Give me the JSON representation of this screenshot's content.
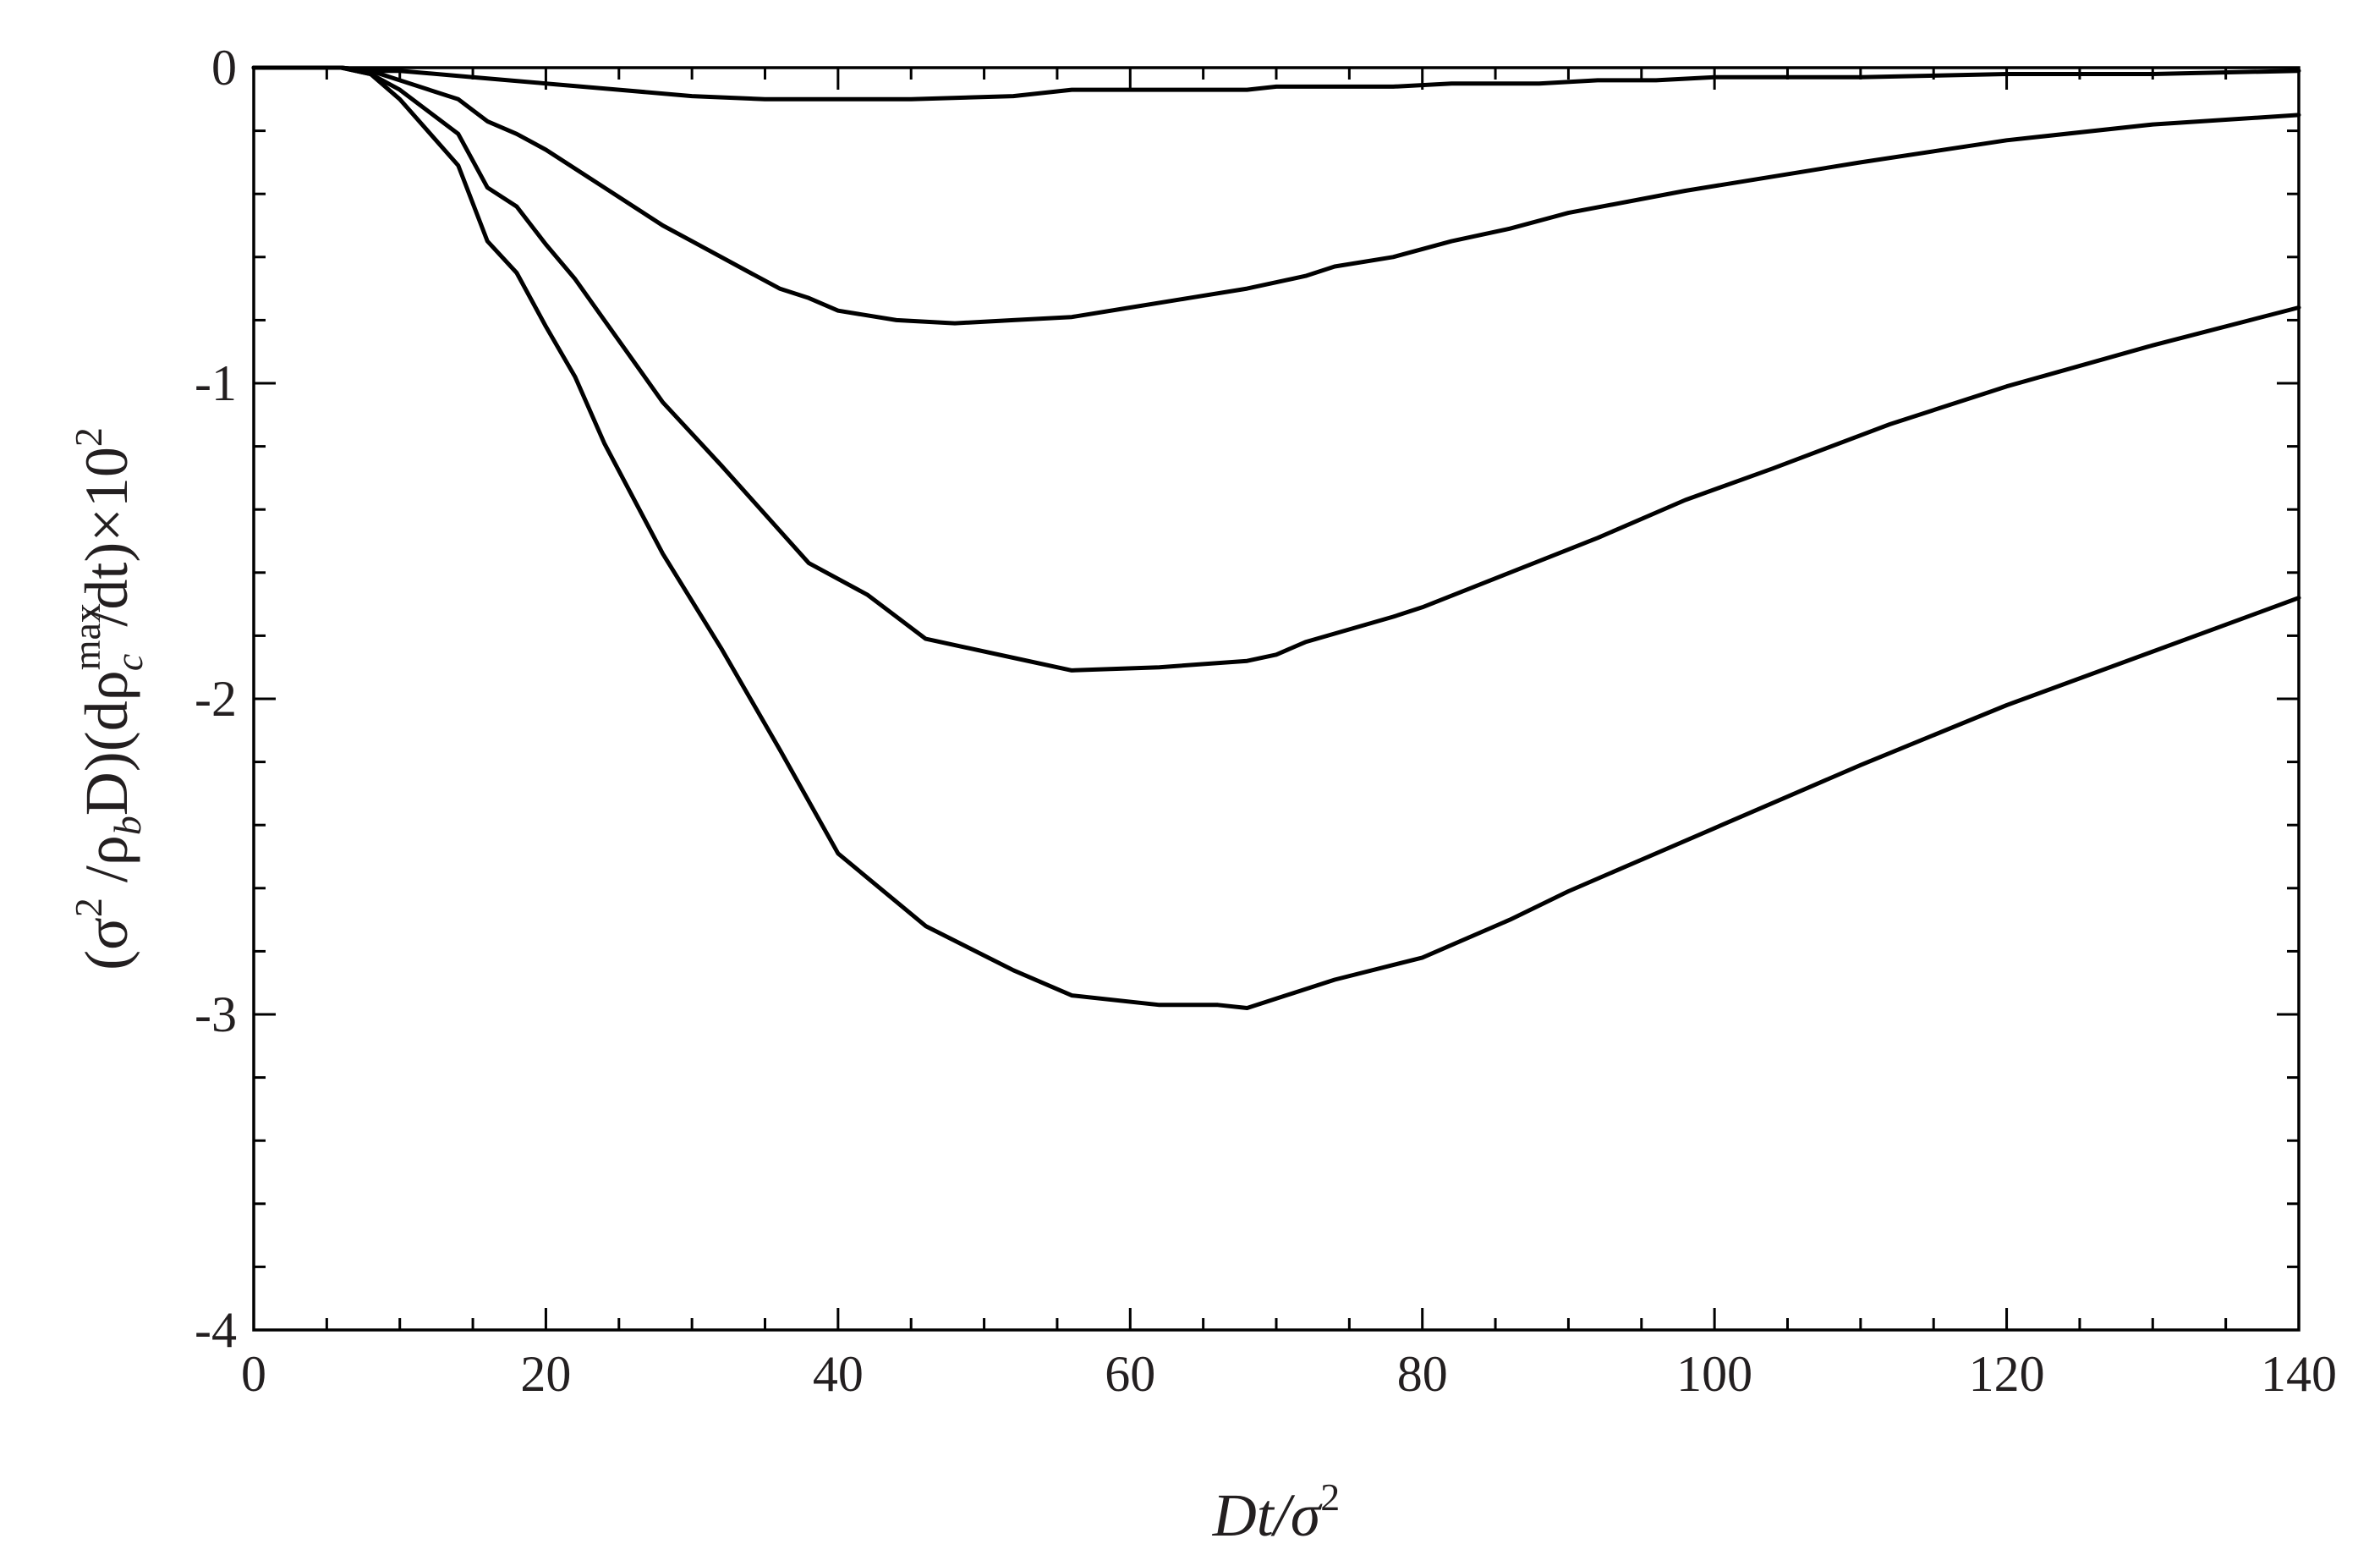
{
  "chart_data": {
    "type": "line",
    "title": "",
    "xlabel": "Dt/σ²",
    "ylabel": "(σ² /ρb D)(dρc max/dt)×10²",
    "xlabel_parts": {
      "base": "Dt/σ",
      "sup": "2"
    },
    "ylabel_parts": {
      "open": "(σ",
      "sup1": "2",
      "mid1": " /ρ",
      "sub1": "b",
      "mid2": "D)(dρ",
      "sup2": "max",
      "sub2": "c",
      "mid3": "/dt)×10",
      "sup3": "2"
    },
    "xlim": [
      0,
      140
    ],
    "ylim": [
      -4,
      0
    ],
    "xticks": [
      0,
      20,
      40,
      60,
      80,
      100,
      120,
      140
    ],
    "xtick_labels": [
      "0",
      "20",
      "40",
      "60",
      "80",
      "100",
      "120",
      "140"
    ],
    "yticks": [
      0,
      -1,
      -2,
      -3,
      -4
    ],
    "ytick_labels": [
      "0",
      "-1",
      "-2",
      "-3",
      "-4"
    ],
    "x_minor_step": 5,
    "y_minor_step": 0.2,
    "grid": false,
    "legend": "none",
    "series": [
      {
        "name": "curve-1",
        "x": [
          0,
          2,
          4,
          6,
          8,
          10,
          15,
          20,
          25,
          30,
          35,
          40,
          45,
          52,
          56,
          60,
          64,
          68,
          70,
          74,
          78,
          82,
          84,
          88,
          92,
          96,
          100,
          110,
          120,
          130,
          140
        ],
        "y": [
          0,
          0,
          0,
          0,
          -0.01,
          -0.01,
          -0.03,
          -0.05,
          -0.07,
          -0.09,
          -0.1,
          -0.1,
          -0.1,
          -0.09,
          -0.07,
          -0.07,
          -0.07,
          -0.07,
          -0.06,
          -0.06,
          -0.06,
          -0.05,
          -0.05,
          -0.05,
          -0.04,
          -0.04,
          -0.03,
          -0.03,
          -0.02,
          -0.02,
          -0.01
        ]
      },
      {
        "name": "curve-2",
        "x": [
          0,
          2,
          4,
          6,
          8,
          10,
          14,
          16,
          18,
          20,
          22,
          24,
          26,
          28,
          30,
          34,
          36,
          38,
          40,
          44,
          48,
          52,
          56,
          60,
          64,
          68,
          72,
          74,
          78,
          82,
          86,
          90,
          98,
          110,
          120,
          130,
          140
        ],
        "y": [
          0,
          0,
          0,
          0,
          -0.01,
          -0.04,
          -0.1,
          -0.17,
          -0.21,
          -0.26,
          -0.32,
          -0.38,
          -0.44,
          -0.5,
          -0.55,
          -0.65,
          -0.7,
          -0.73,
          -0.77,
          -0.8,
          -0.81,
          -0.8,
          -0.79,
          -0.76,
          -0.73,
          -0.7,
          -0.66,
          -0.63,
          -0.6,
          -0.55,
          -0.51,
          -0.46,
          -0.39,
          -0.3,
          -0.23,
          -0.18,
          -0.15
        ]
      },
      {
        "name": "curve-3",
        "x": [
          0,
          2,
          4,
          6,
          8,
          10,
          14,
          16,
          18,
          20,
          22,
          24,
          28,
          32,
          38,
          42,
          46,
          52,
          56,
          62,
          68,
          70,
          72,
          78,
          80,
          86,
          92,
          98,
          104,
          112,
          120,
          130,
          140
        ],
        "y": [
          0,
          0,
          0,
          0,
          -0.02,
          -0.07,
          -0.21,
          -0.38,
          -0.44,
          -0.56,
          -0.67,
          -0.8,
          -1.06,
          -1.26,
          -1.57,
          -1.67,
          -1.81,
          -1.87,
          -1.91,
          -1.9,
          -1.88,
          -1.86,
          -1.82,
          -1.74,
          -1.71,
          -1.6,
          -1.49,
          -1.37,
          -1.27,
          -1.13,
          -1.01,
          -0.88,
          -0.76
        ]
      },
      {
        "name": "curve-4",
        "x": [
          0,
          2,
          4,
          6,
          8,
          10,
          14,
          16,
          18,
          20,
          22,
          24,
          28,
          32,
          36,
          40,
          46,
          52,
          56,
          62,
          66,
          68,
          74,
          80,
          86,
          90,
          100,
          110,
          120,
          130,
          140
        ],
        "y": [
          0,
          0,
          0,
          0,
          -0.02,
          -0.1,
          -0.31,
          -0.55,
          -0.65,
          -0.82,
          -0.98,
          -1.19,
          -1.54,
          -1.84,
          -2.16,
          -2.49,
          -2.72,
          -2.86,
          -2.94,
          -2.97,
          -2.97,
          -2.98,
          -2.89,
          -2.82,
          -2.7,
          -2.61,
          -2.41,
          -2.21,
          -2.02,
          -1.85,
          -1.68
        ]
      }
    ]
  }
}
